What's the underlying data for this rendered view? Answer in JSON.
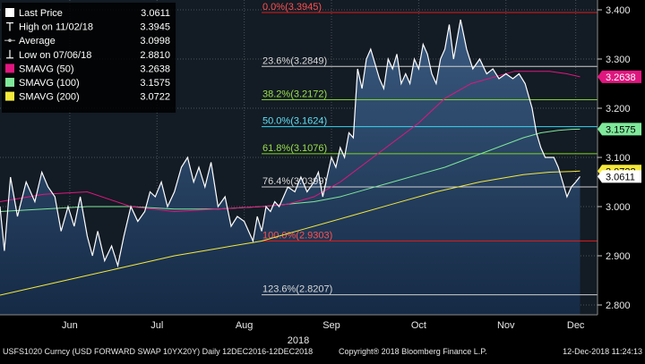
{
  "chart_data": {
    "type": "line",
    "ticker": "USFS1020 Curncy (USD FORWARD SWAP 10YX20Y)  Daily 12DEC2016-12DEC2018",
    "copyright": "Copyright® 2018 Bloomberg Finance L.P.",
    "timestamp": "12-Dec-2018 11:24:13",
    "year_label": "2018",
    "ylim": [
      2.78,
      3.42
    ],
    "y_ticks": [
      {
        "value": 2.8,
        "label": "2.800"
      },
      {
        "value": 2.9,
        "label": "2.900"
      },
      {
        "value": 3.0,
        "label": "3.000"
      },
      {
        "value": 3.1,
        "label": "3.100"
      },
      {
        "value": 3.2,
        "label": "3.200"
      },
      {
        "value": 3.3,
        "label": "3.300"
      },
      {
        "value": 3.4,
        "label": "3.400"
      }
    ],
    "x_ticks": [
      "Jun",
      "Jul",
      "Aug",
      "Sep",
      "Oct",
      "Nov",
      "Dec"
    ],
    "x_tick_positions": [
      0.8,
      1.8,
      2.8,
      3.8,
      4.8,
      5.8,
      6.6
    ],
    "x_range": [
      0,
      6.85
    ],
    "legend": [
      {
        "label": "Last Price",
        "value": "3.0611",
        "color": "#ffffff",
        "marker": "square"
      },
      {
        "label": "High on 11/02/18",
        "value": "3.3945",
        "color": "#ffffff",
        "marker": "high"
      },
      {
        "label": "Average",
        "value": "3.0998",
        "color": "#ffffff",
        "marker": "avg"
      },
      {
        "label": "Low on 07/06/18",
        "value": "2.8810",
        "color": "#ffffff",
        "marker": "low"
      },
      {
        "label": "SMAVG (50)",
        "value": "3.2638",
        "color": "#e0167f",
        "marker": "square"
      },
      {
        "label": "SMAVG (100)",
        "value": "3.1575",
        "color": "#7fe89a",
        "marker": "square"
      },
      {
        "label": "SMAVG (200)",
        "value": "3.0722",
        "color": "#f5e93c",
        "marker": "square"
      }
    ],
    "fib_levels": [
      {
        "label": "0.0%(3.3945)",
        "value": 3.3945,
        "color": "#e01b1b",
        "text_color": "#ff5050"
      },
      {
        "label": "23.6%(3.2849)",
        "value": 3.2849,
        "color": "#cfcfcf",
        "text_color": "#d8d8d8"
      },
      {
        "label": "38.2%(3.2172)",
        "value": 3.2172,
        "color": "#7ed321",
        "text_color": "#9be04a"
      },
      {
        "label": "50.0%(3.1624)",
        "value": 3.1624,
        "color": "#38d6f0",
        "text_color": "#5fe0f5"
      },
      {
        "label": "61.8%(3.1076)",
        "value": 3.1076,
        "color": "#7ed321",
        "text_color": "#9be04a"
      },
      {
        "label": "76.4%(3.0399)",
        "value": 3.0399,
        "color": "#cfcfcf",
        "text_color": "#d8d8d8"
      },
      {
        "label": "100.0%(2.9303)",
        "value": 2.9303,
        "color": "#e01b1b",
        "text_color": "#ff5050"
      },
      {
        "label": "123.6%(2.8207)",
        "value": 2.8207,
        "color": "#cfcfcf",
        "text_color": "#d8d8d8"
      }
    ],
    "axis_tags": [
      {
        "label": "3.2638",
        "value": 3.2638,
        "bg": "#e0167f",
        "fg": "#ffffff"
      },
      {
        "label": "3.1575",
        "value": 3.1575,
        "bg": "#7fe89a",
        "fg": "#000000"
      },
      {
        "label": "3.0722",
        "value": 3.0722,
        "bg": "#f5e93c",
        "fg": "#000000"
      },
      {
        "label": "3.0611",
        "value": 3.0611,
        "bg": "#ffffff",
        "fg": "#000000"
      }
    ],
    "series": [
      {
        "name": "Last Price",
        "color": "#ffffff",
        "x": [
          0,
          0.05,
          0.12,
          0.2,
          0.3,
          0.4,
          0.48,
          0.55,
          0.63,
          0.7,
          0.78,
          0.85,
          0.92,
          1.0,
          1.06,
          1.12,
          1.2,
          1.28,
          1.35,
          1.42,
          1.5,
          1.58,
          1.66,
          1.72,
          1.78,
          1.85,
          1.92,
          2.0,
          2.08,
          2.15,
          2.22,
          2.28,
          2.35,
          2.42,
          2.5,
          2.58,
          2.65,
          2.72,
          2.8,
          2.9,
          2.95,
          3.0,
          3.05,
          3.1,
          3.15,
          3.2,
          3.25,
          3.3,
          3.38,
          3.45,
          3.52,
          3.6,
          3.65,
          3.7,
          3.75,
          3.8,
          3.85,
          3.9,
          3.95,
          4.0,
          4.05,
          4.1,
          4.15,
          4.2,
          4.25,
          4.3,
          4.35,
          4.4,
          4.45,
          4.5,
          4.55,
          4.6,
          4.65,
          4.7,
          4.75,
          4.8,
          4.85,
          4.9,
          4.95,
          5.0,
          5.05,
          5.1,
          5.15,
          5.2,
          5.28,
          5.35,
          5.42,
          5.5,
          5.58,
          5.65,
          5.72,
          5.8,
          5.88,
          5.95,
          6.02,
          6.1,
          6.15,
          6.2,
          6.25,
          6.3,
          6.35,
          6.4,
          6.45,
          6.5,
          6.55,
          6.6,
          6.65
        ],
        "values": [
          3.0,
          2.91,
          3.06,
          2.98,
          3.05,
          3.01,
          3.07,
          3.04,
          3.02,
          2.95,
          3.0,
          2.96,
          3.02,
          2.94,
          2.9,
          2.95,
          2.89,
          2.92,
          2.88,
          2.94,
          3.0,
          2.97,
          2.99,
          3.03,
          3.02,
          3.05,
          3.0,
          3.03,
          3.08,
          3.1,
          3.05,
          3.08,
          3.04,
          3.09,
          3.0,
          3.02,
          2.96,
          2.98,
          2.97,
          2.93,
          2.98,
          2.95,
          3.0,
          2.99,
          3.01,
          3.0,
          3.02,
          3.04,
          3.03,
          3.06,
          3.03,
          3.05,
          3.07,
          3.02,
          3.06,
          3.1,
          3.08,
          3.12,
          3.1,
          3.15,
          3.14,
          3.28,
          3.24,
          3.3,
          3.32,
          3.29,
          3.26,
          3.24,
          3.3,
          3.28,
          3.31,
          3.25,
          3.27,
          3.25,
          3.3,
          3.28,
          3.33,
          3.31,
          3.27,
          3.25,
          3.3,
          3.32,
          3.37,
          3.3,
          3.38,
          3.32,
          3.28,
          3.3,
          3.27,
          3.28,
          3.26,
          3.27,
          3.26,
          3.27,
          3.25,
          3.2,
          3.15,
          3.12,
          3.1,
          3.1,
          3.1,
          3.08,
          3.05,
          3.02,
          3.04,
          3.05,
          3.061
        ]
      },
      {
        "name": "SMAVG (50)",
        "color": "#e0167f",
        "x": [
          0,
          0.5,
          1.0,
          1.5,
          2.0,
          2.5,
          3.0,
          3.3,
          3.6,
          3.9,
          4.2,
          4.5,
          4.8,
          5.1,
          5.4,
          5.7,
          5.9,
          6.1,
          6.3,
          6.5,
          6.65
        ],
        "values": [
          3.01,
          3.025,
          3.03,
          3.0,
          2.99,
          2.995,
          3.0,
          3.005,
          3.02,
          3.05,
          3.09,
          3.13,
          3.17,
          3.22,
          3.25,
          3.265,
          3.275,
          3.275,
          3.275,
          3.27,
          3.2638
        ]
      },
      {
        "name": "SMAVG (100)",
        "color": "#7fe89a",
        "x": [
          0,
          0.5,
          1.0,
          1.5,
          2.0,
          2.5,
          3.0,
          3.3,
          3.6,
          3.9,
          4.2,
          4.5,
          4.8,
          5.1,
          5.4,
          5.7,
          6.0,
          6.2,
          6.4,
          6.55,
          6.65
        ],
        "values": [
          2.99,
          2.995,
          3.0,
          3.0,
          2.995,
          2.995,
          3.0,
          3.005,
          3.01,
          3.02,
          3.035,
          3.05,
          3.065,
          3.08,
          3.1,
          3.12,
          3.14,
          3.15,
          3.155,
          3.157,
          3.1575
        ]
      },
      {
        "name": "SMAVG (200)",
        "color": "#f5e93c",
        "x": [
          0,
          0.5,
          1.0,
          1.5,
          2.0,
          2.5,
          3.0,
          3.5,
          4.0,
          4.5,
          5.0,
          5.5,
          6.0,
          6.3,
          6.5,
          6.65
        ],
        "values": [
          2.82,
          2.84,
          2.86,
          2.88,
          2.9,
          2.915,
          2.93,
          2.955,
          2.98,
          3.005,
          3.03,
          3.05,
          3.065,
          3.07,
          3.071,
          3.0722
        ]
      }
    ]
  }
}
